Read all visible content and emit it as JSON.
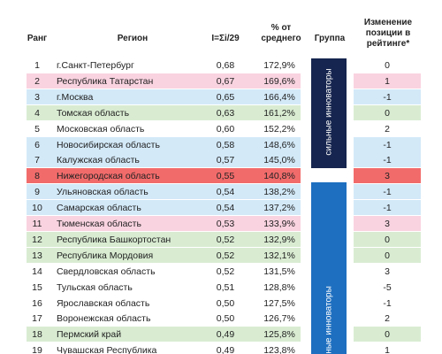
{
  "table": {
    "headers": {
      "rank": "Ранг",
      "region": "Регион",
      "index": "I=Σi/29",
      "percent": [
        "% от",
        "среднего"
      ],
      "group": "Группа",
      "change": [
        "Изменение",
        "позиции в",
        "рейтинге*"
      ]
    },
    "groups": [
      {
        "label": "сильные инноваторы"
      },
      {
        "label": "ные инноваторы"
      }
    ],
    "highlight_colors": {
      "pink": "#f9d3e0",
      "blue": "#d3e9f8",
      "green": "#d9ecd2",
      "red": "#f26b6b"
    },
    "rows": [
      [
        "1",
        "г.Санкт-Петербург",
        "0,68",
        "172,9%",
        "0",
        null
      ],
      [
        "2",
        "Республика Татарстан",
        "0,67",
        "169,6%",
        "1",
        "pink"
      ],
      [
        "3",
        "г.Москва",
        "0,65",
        "166,4%",
        "-1",
        "blue"
      ],
      [
        "4",
        "Томская область",
        "0,63",
        "161,2%",
        "0",
        "green"
      ],
      [
        "5",
        "Московская область",
        "0,60",
        "152,2%",
        "2",
        null
      ],
      [
        "6",
        "Новосибирская область",
        "0,58",
        "148,6%",
        "-1",
        "blue"
      ],
      [
        "7",
        "Калужская область",
        "0,57",
        "145,0%",
        "-1",
        "blue"
      ],
      [
        "8",
        "Нижегородская область",
        "0,55",
        "140,8%",
        "3",
        "red"
      ],
      [
        "9",
        "Ульяновская область",
        "0,54",
        "138,2%",
        "-1",
        "blue"
      ],
      [
        "10",
        "Самарская область",
        "0,54",
        "137,2%",
        "-1",
        "blue"
      ],
      [
        "11",
        "Тюменская область",
        "0,53",
        "133,9%",
        "3",
        "pink"
      ],
      [
        "12",
        "Республика Башкортостан",
        "0,52",
        "132,9%",
        "0",
        "green"
      ],
      [
        "13",
        "Республика Мордовия",
        "0,52",
        "132,1%",
        "0",
        "green"
      ],
      [
        "14",
        "Свердловская область",
        "0,52",
        "131,5%",
        "3",
        null
      ],
      [
        "15",
        "Тульская область",
        "0,51",
        "128,8%",
        "-5",
        null
      ],
      [
        "16",
        "Ярославская область",
        "0,50",
        "127,5%",
        "-1",
        null
      ],
      [
        "17",
        "Воронежская область",
        "0,50",
        "126,7%",
        "2",
        null
      ],
      [
        "18",
        "Пермский край",
        "0,49",
        "125,8%",
        "0",
        "green"
      ],
      [
        "19",
        "Чувашская Республика",
        "0,49",
        "123,8%",
        "1",
        null
      ]
    ]
  }
}
